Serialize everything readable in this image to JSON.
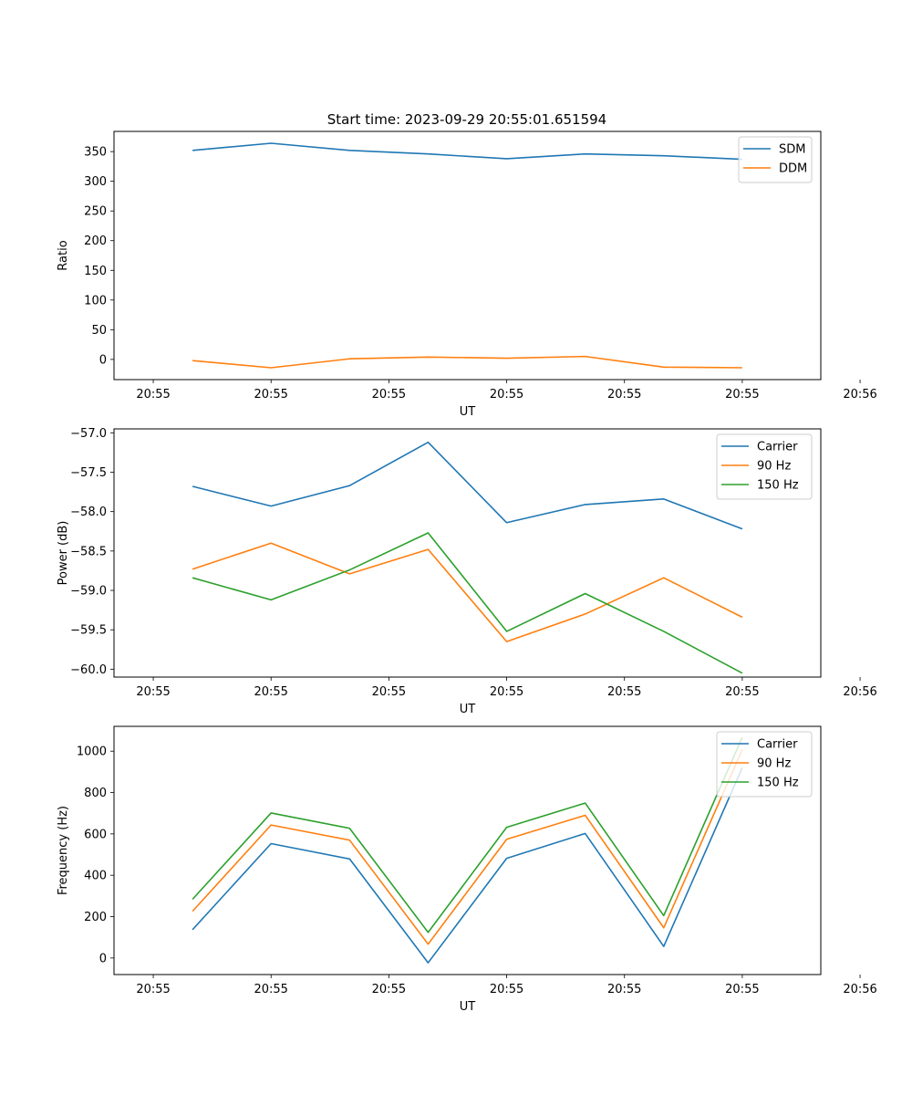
{
  "title": "Start time: 2023-09-29 20:55:01.651594",
  "colors": {
    "blue": "#1f77b4",
    "orange": "#ff7f0e",
    "green": "#2ca02c"
  },
  "chart_data": [
    {
      "type": "line",
      "xlabel": "UT",
      "ylabel": "Ratio",
      "x": [
        1,
        2,
        3,
        4,
        5,
        6,
        7,
        8
      ],
      "xlim": [
        0,
        9
      ],
      "xticks": [
        0.5,
        2,
        3.5,
        5,
        6.5,
        8,
        9.5
      ],
      "xtick_labels": [
        "20:55",
        "20:55",
        "20:55",
        "20:55",
        "20:55",
        "20:55",
        "20:56"
      ],
      "ylim": [
        -34,
        384
      ],
      "yticks": [
        0,
        50,
        100,
        150,
        200,
        250,
        300,
        350
      ],
      "ytick_labels": [
        "0",
        "50",
        "100",
        "150",
        "200",
        "250",
        "300",
        "350"
      ],
      "legend_position": "top-right",
      "series": [
        {
          "name": "SDM",
          "color": "#1f77b4",
          "values": [
            352,
            364,
            352,
            346,
            338,
            346,
            343,
            337
          ]
        },
        {
          "name": "DDM",
          "color": "#ff7f0e",
          "values": [
            -2,
            -14,
            1,
            4,
            2,
            5,
            -13,
            -14
          ]
        }
      ]
    },
    {
      "type": "line",
      "xlabel": "UT",
      "ylabel": "Power (dB)",
      "x": [
        1,
        2,
        3,
        4,
        5,
        6,
        7,
        8
      ],
      "xlim": [
        0,
        9
      ],
      "xticks": [
        0.5,
        2,
        3.5,
        5,
        6.5,
        8,
        9.5
      ],
      "xtick_labels": [
        "20:55",
        "20:55",
        "20:55",
        "20:55",
        "20:55",
        "20:55",
        "20:56"
      ],
      "ylim": [
        -60.1,
        -56.95
      ],
      "yticks": [
        -60.0,
        -59.5,
        -59.0,
        -58.5,
        -58.0,
        -57.5,
        -57.0
      ],
      "ytick_labels": [
        "−60.0",
        "−59.5",
        "−59.0",
        "−58.5",
        "−58.0",
        "−57.5",
        "−57.0"
      ],
      "legend_position": "top-right",
      "series": [
        {
          "name": "Carrier",
          "color": "#1f77b4",
          "values": [
            -57.68,
            -57.93,
            -57.67,
            -57.12,
            -58.14,
            -57.91,
            -57.84,
            -58.22
          ]
        },
        {
          "name": "90 Hz",
          "color": "#ff7f0e",
          "values": [
            -58.73,
            -58.4,
            -58.79,
            -58.48,
            -59.65,
            -59.3,
            -58.84,
            -59.34
          ]
        },
        {
          "name": "150 Hz",
          "color": "#2ca02c",
          "values": [
            -58.84,
            -59.12,
            -58.74,
            -58.27,
            -59.52,
            -59.04,
            -59.52,
            -60.05
          ]
        }
      ]
    },
    {
      "type": "line",
      "xlabel": "UT",
      "ylabel": "Frequency (Hz)",
      "x": [
        1,
        2,
        3,
        4,
        5,
        6,
        7,
        8
      ],
      "xlim": [
        0,
        9
      ],
      "xticks": [
        0.5,
        2,
        3.5,
        5,
        6.5,
        8,
        9.5
      ],
      "xtick_labels": [
        "20:55",
        "20:55",
        "20:55",
        "20:55",
        "20:55",
        "20:55",
        "20:56"
      ],
      "ylim": [
        -80,
        1120
      ],
      "yticks": [
        0,
        200,
        400,
        600,
        800,
        1000
      ],
      "ytick_labels": [
        "0",
        "200",
        "400",
        "600",
        "800",
        "1000"
      ],
      "legend_position": "top-right",
      "series": [
        {
          "name": "Carrier",
          "color": "#1f77b4",
          "values": [
            137,
            553,
            479,
            -23,
            482,
            602,
            56,
            920
          ]
        },
        {
          "name": "90 Hz",
          "color": "#ff7f0e",
          "values": [
            226,
            643,
            570,
            67,
            574,
            690,
            146,
            1007
          ]
        },
        {
          "name": "150 Hz",
          "color": "#2ca02c",
          "values": [
            284,
            701,
            627,
            124,
            632,
            749,
            205,
            1067
          ]
        }
      ]
    }
  ]
}
